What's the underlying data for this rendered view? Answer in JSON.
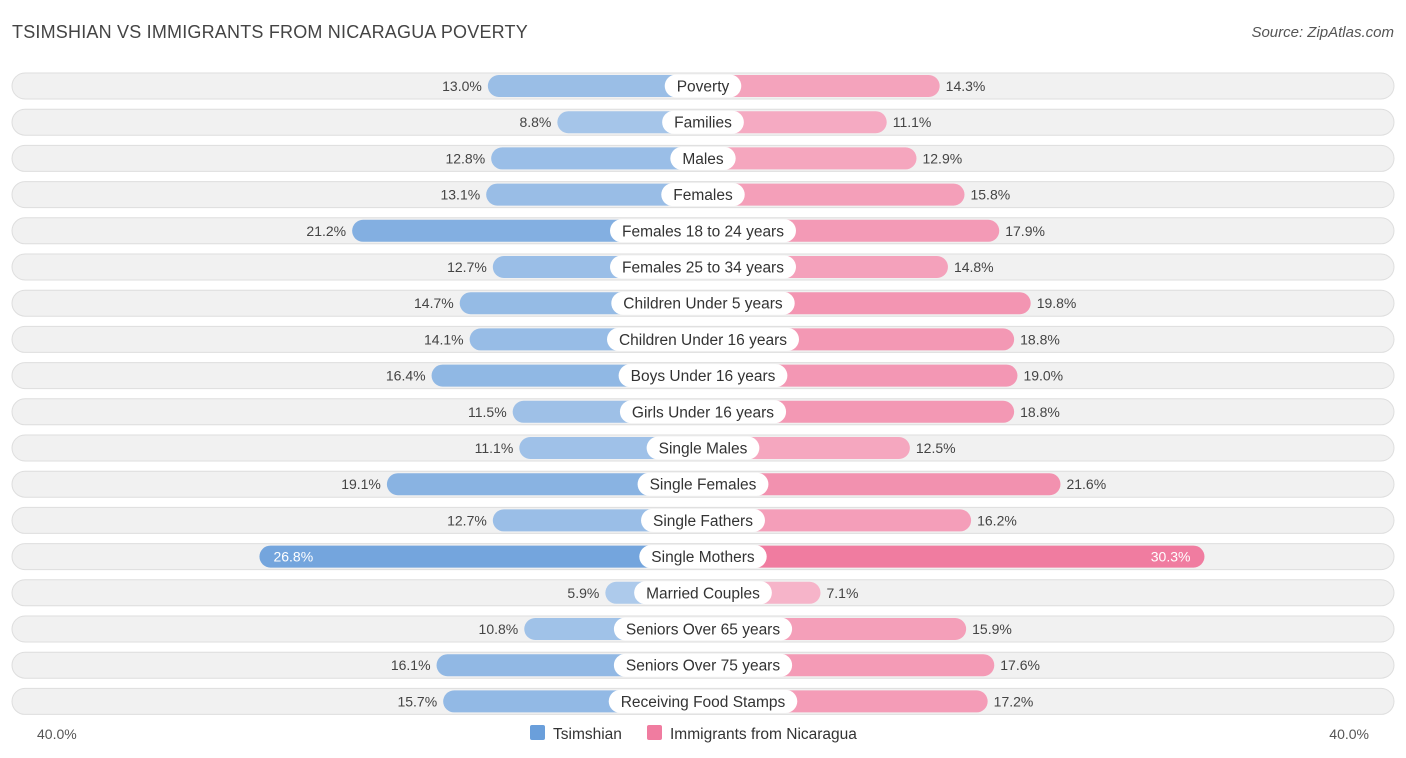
{
  "title": "TSIMSHIAN VS IMMIGRANTS FROM NICARAGUA POVERTY",
  "source": "Source: ZipAtlas.com",
  "chart_data": {
    "type": "bar",
    "orientation": "horizontal-diverging",
    "categories": [
      "Poverty",
      "Families",
      "Males",
      "Females",
      "Females 18 to 24 years",
      "Females 25 to 34 years",
      "Children Under 5 years",
      "Children Under 16 years",
      "Boys Under 16 years",
      "Girls Under 16 years",
      "Single Males",
      "Single Females",
      "Single Fathers",
      "Single Mothers",
      "Married Couples",
      "Seniors Over 65 years",
      "Seniors Over 75 years",
      "Receiving Food Stamps"
    ],
    "series": [
      {
        "name": "Tsimshian",
        "color": "#6a9fdb",
        "values": [
          13.0,
          8.8,
          12.8,
          13.1,
          21.2,
          12.7,
          14.7,
          14.1,
          16.4,
          11.5,
          11.1,
          19.1,
          12.7,
          26.8,
          5.9,
          10.8,
          16.1,
          15.7
        ],
        "labels": [
          "13.0%",
          "8.8%",
          "12.8%",
          "13.1%",
          "21.2%",
          "12.7%",
          "14.7%",
          "14.1%",
          "16.4%",
          "11.5%",
          "11.1%",
          "19.1%",
          "12.7%",
          "26.8%",
          "5.9%",
          "10.8%",
          "16.1%",
          "15.7%"
        ]
      },
      {
        "name": "Immigrants from Nicaragua",
        "color": "#f07ca0",
        "values": [
          14.3,
          11.1,
          12.9,
          15.8,
          17.9,
          14.8,
          19.8,
          18.8,
          19.0,
          18.8,
          12.5,
          21.6,
          16.2,
          30.3,
          7.1,
          15.9,
          17.6,
          17.2
        ],
        "labels": [
          "14.3%",
          "11.1%",
          "12.9%",
          "15.8%",
          "17.9%",
          "14.8%",
          "19.8%",
          "18.8%",
          "19.0%",
          "18.8%",
          "12.5%",
          "21.6%",
          "16.2%",
          "30.3%",
          "7.1%",
          "15.9%",
          "17.6%",
          "17.2%"
        ]
      }
    ],
    "axis": {
      "max": 40.0,
      "left_label": "40.0%",
      "right_label": "40.0%"
    },
    "legend": {
      "position": "bottom-center",
      "entries": [
        "Tsimshian",
        "Immigrants from Nicaragua"
      ]
    }
  }
}
